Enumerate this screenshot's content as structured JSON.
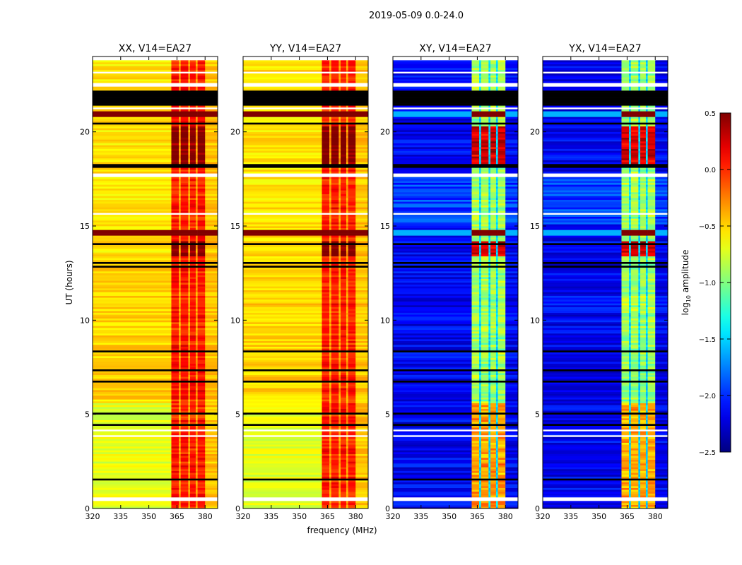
{
  "chart_data": {
    "type": "heatmap",
    "suptitle": "2019-05-09 0.0-24.0",
    "xlabel": "frequency (MHz)",
    "ylabel": "UT (hours)",
    "xlim": [
      320,
      386.7
    ],
    "ylim": [
      0,
      24
    ],
    "xticks": [
      "320",
      "335",
      "350",
      "365",
      "380"
    ],
    "yticks": [
      "0",
      "5",
      "10",
      "15",
      "20"
    ],
    "colorbar": {
      "label_main": "log",
      "label_sub": "10",
      "label_tail": " amplitude",
      "range": [
        -2.5,
        0.5
      ],
      "ticks": [
        "−2.5",
        "−2.0",
        "−1.5",
        "−1.0",
        "−0.5",
        "0.0",
        "0.5"
      ],
      "colormap": "jet"
    },
    "panels": [
      {
        "title": "XX, V14=EA27",
        "kind": "parallel"
      },
      {
        "title": "YY, V14=EA27",
        "kind": "parallel"
      },
      {
        "title": "XY, V14=EA27",
        "kind": "cross"
      },
      {
        "title": "YX, V14=EA27",
        "kind": "cross"
      }
    ],
    "freq_segments_mhz": [
      [
        320,
        362
      ],
      [
        362,
        366
      ],
      [
        366,
        367
      ],
      [
        367,
        371
      ],
      [
        371,
        372
      ],
      [
        372,
        375
      ],
      [
        375,
        376
      ],
      [
        376,
        380
      ],
      [
        380,
        386.7
      ]
    ],
    "flagged_black_hours": [
      [
        21.4,
        22.2
      ],
      [
        20.4,
        20.55
      ],
      [
        18.1,
        18.3
      ],
      [
        13.95,
        14.05
      ],
      [
        12.95,
        13.05
      ],
      [
        12.8,
        12.85
      ],
      [
        8.25,
        8.35
      ],
      [
        7.25,
        7.35
      ],
      [
        6.65,
        6.75
      ],
      [
        4.95,
        5.05
      ],
      [
        4.45,
        4.55
      ],
      [
        1.55,
        1.65
      ]
    ],
    "empty_white_hours": [
      [
        23.85,
        24
      ],
      [
        23.1,
        23.2
      ],
      [
        22.4,
        22.6
      ],
      [
        21.2,
        21.35
      ],
      [
        17.6,
        17.8
      ],
      [
        15.55,
        15.65
      ],
      [
        15.25,
        15.3
      ],
      [
        4.15,
        4.25
      ],
      [
        3.85,
        3.95
      ],
      [
        0.4,
        0.6
      ]
    ],
    "saturated_hours": [
      [
        20.8,
        21.1
      ],
      [
        14.5,
        14.8
      ]
    ],
    "burst_hours": [
      [
        18.3,
        20.3
      ],
      [
        13.4,
        14.2
      ]
    ],
    "levels": {
      "parallel": {
        "background": -0.55,
        "band": 0.05,
        "burst": 0.45
      },
      "cross": {
        "background": -2.15,
        "band": -0.9,
        "band_gap": -1.5,
        "burst": 0.25
      }
    }
  }
}
